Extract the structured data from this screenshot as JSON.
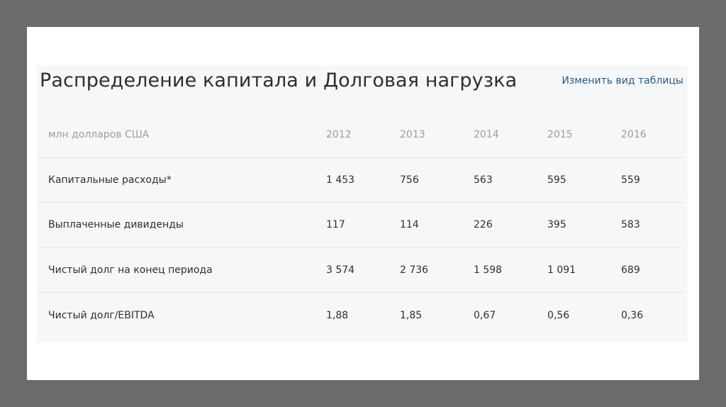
{
  "title": "Распределение капитала и Долговая нагрузка",
  "change_view_link": "Изменить вид таблицы",
  "table": {
    "columns": [
      "млн долларов США",
      "2012",
      "2013",
      "2014",
      "2015",
      "2016"
    ],
    "rows": [
      [
        "Капитальные расходы*",
        "1 453",
        "756",
        "563",
        "595",
        "559"
      ],
      [
        "Выплаченные дивиденды",
        "117",
        "114",
        "226",
        "395",
        "583"
      ],
      [
        "Чистый долг на конец периода",
        "3 574",
        "2 736",
        "1 598",
        "1 091",
        "689"
      ],
      [
        "Чистый долг/EBITDA",
        "1,88",
        "1,85",
        "0,67",
        "0,56",
        "0,36"
      ]
    ]
  }
}
